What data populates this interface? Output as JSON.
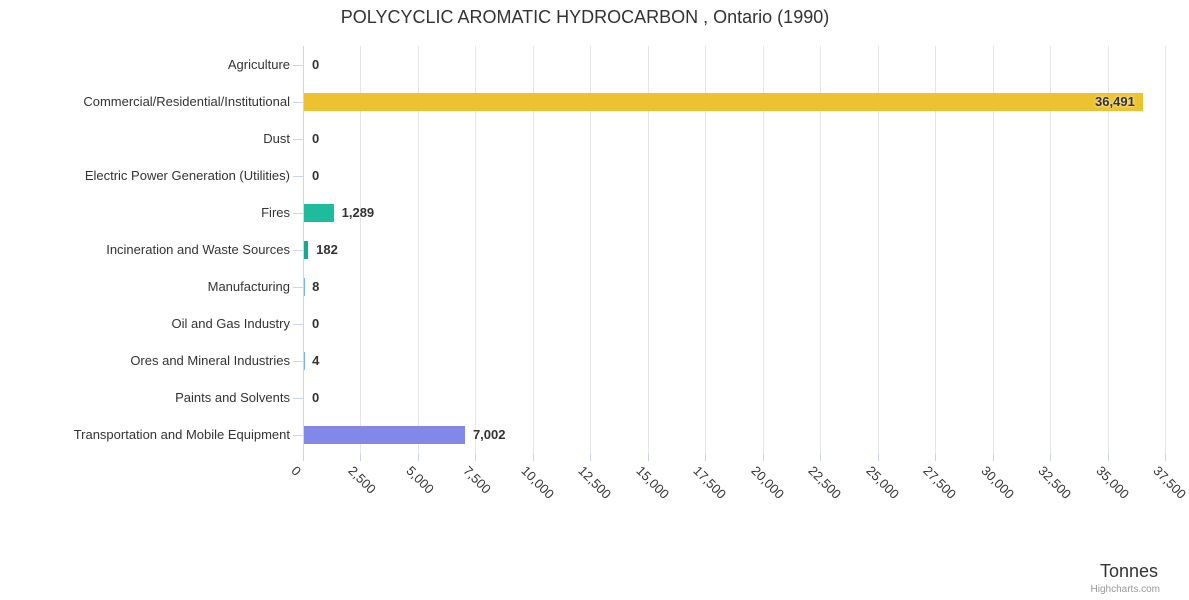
{
  "credit": "Highcharts.com",
  "chart_data": {
    "type": "bar",
    "title": "POLYCYCLIC AROMATIC HYDROCARBON , Ontario (1990)",
    "xlabel": "Tonnes",
    "categories": [
      "Agriculture",
      "Commercial/Residential/Institutional",
      "Dust",
      "Electric Power Generation (Utilities)",
      "Fires",
      "Incineration and Waste Sources",
      "Manufacturing",
      "Oil and Gas Industry",
      "Ores and Mineral Industries",
      "Paints and Solvents",
      "Transportation and Mobile Equipment"
    ],
    "values": [
      0,
      36491,
      0,
      0,
      1289,
      182,
      8,
      0,
      4,
      0,
      7002
    ],
    "value_labels": [
      "0",
      "36,491",
      "0",
      "0",
      "1,289",
      "182",
      "8",
      "0",
      "4",
      "0",
      "7,002"
    ],
    "bar_colors": [
      "#7cb5ec",
      "#edc230",
      "#7cb5ec",
      "#7cb5ec",
      "#1ebc9c",
      "#17a98e",
      "#7cb5ec",
      "#7cb5ec",
      "#7cb5ec",
      "#7cb5ec",
      "#8287e8"
    ],
    "label_inside": [
      false,
      true,
      false,
      false,
      false,
      false,
      false,
      false,
      false,
      false,
      false
    ],
    "xlim": [
      0,
      37500
    ],
    "tick_interval": 2500,
    "tick_labels": [
      "0",
      "2,500",
      "5,000",
      "7,500",
      "10,000",
      "12,500",
      "15,000",
      "17,500",
      "20,000",
      "22,500",
      "25,000",
      "27,500",
      "30,000",
      "32,500",
      "35,000",
      "37,500"
    ],
    "grid": true,
    "legend": false,
    "colors": {
      "grid": "#e6e6e6",
      "axis": "#ccd6eb",
      "text": "#333333",
      "credit": "#999999"
    }
  }
}
